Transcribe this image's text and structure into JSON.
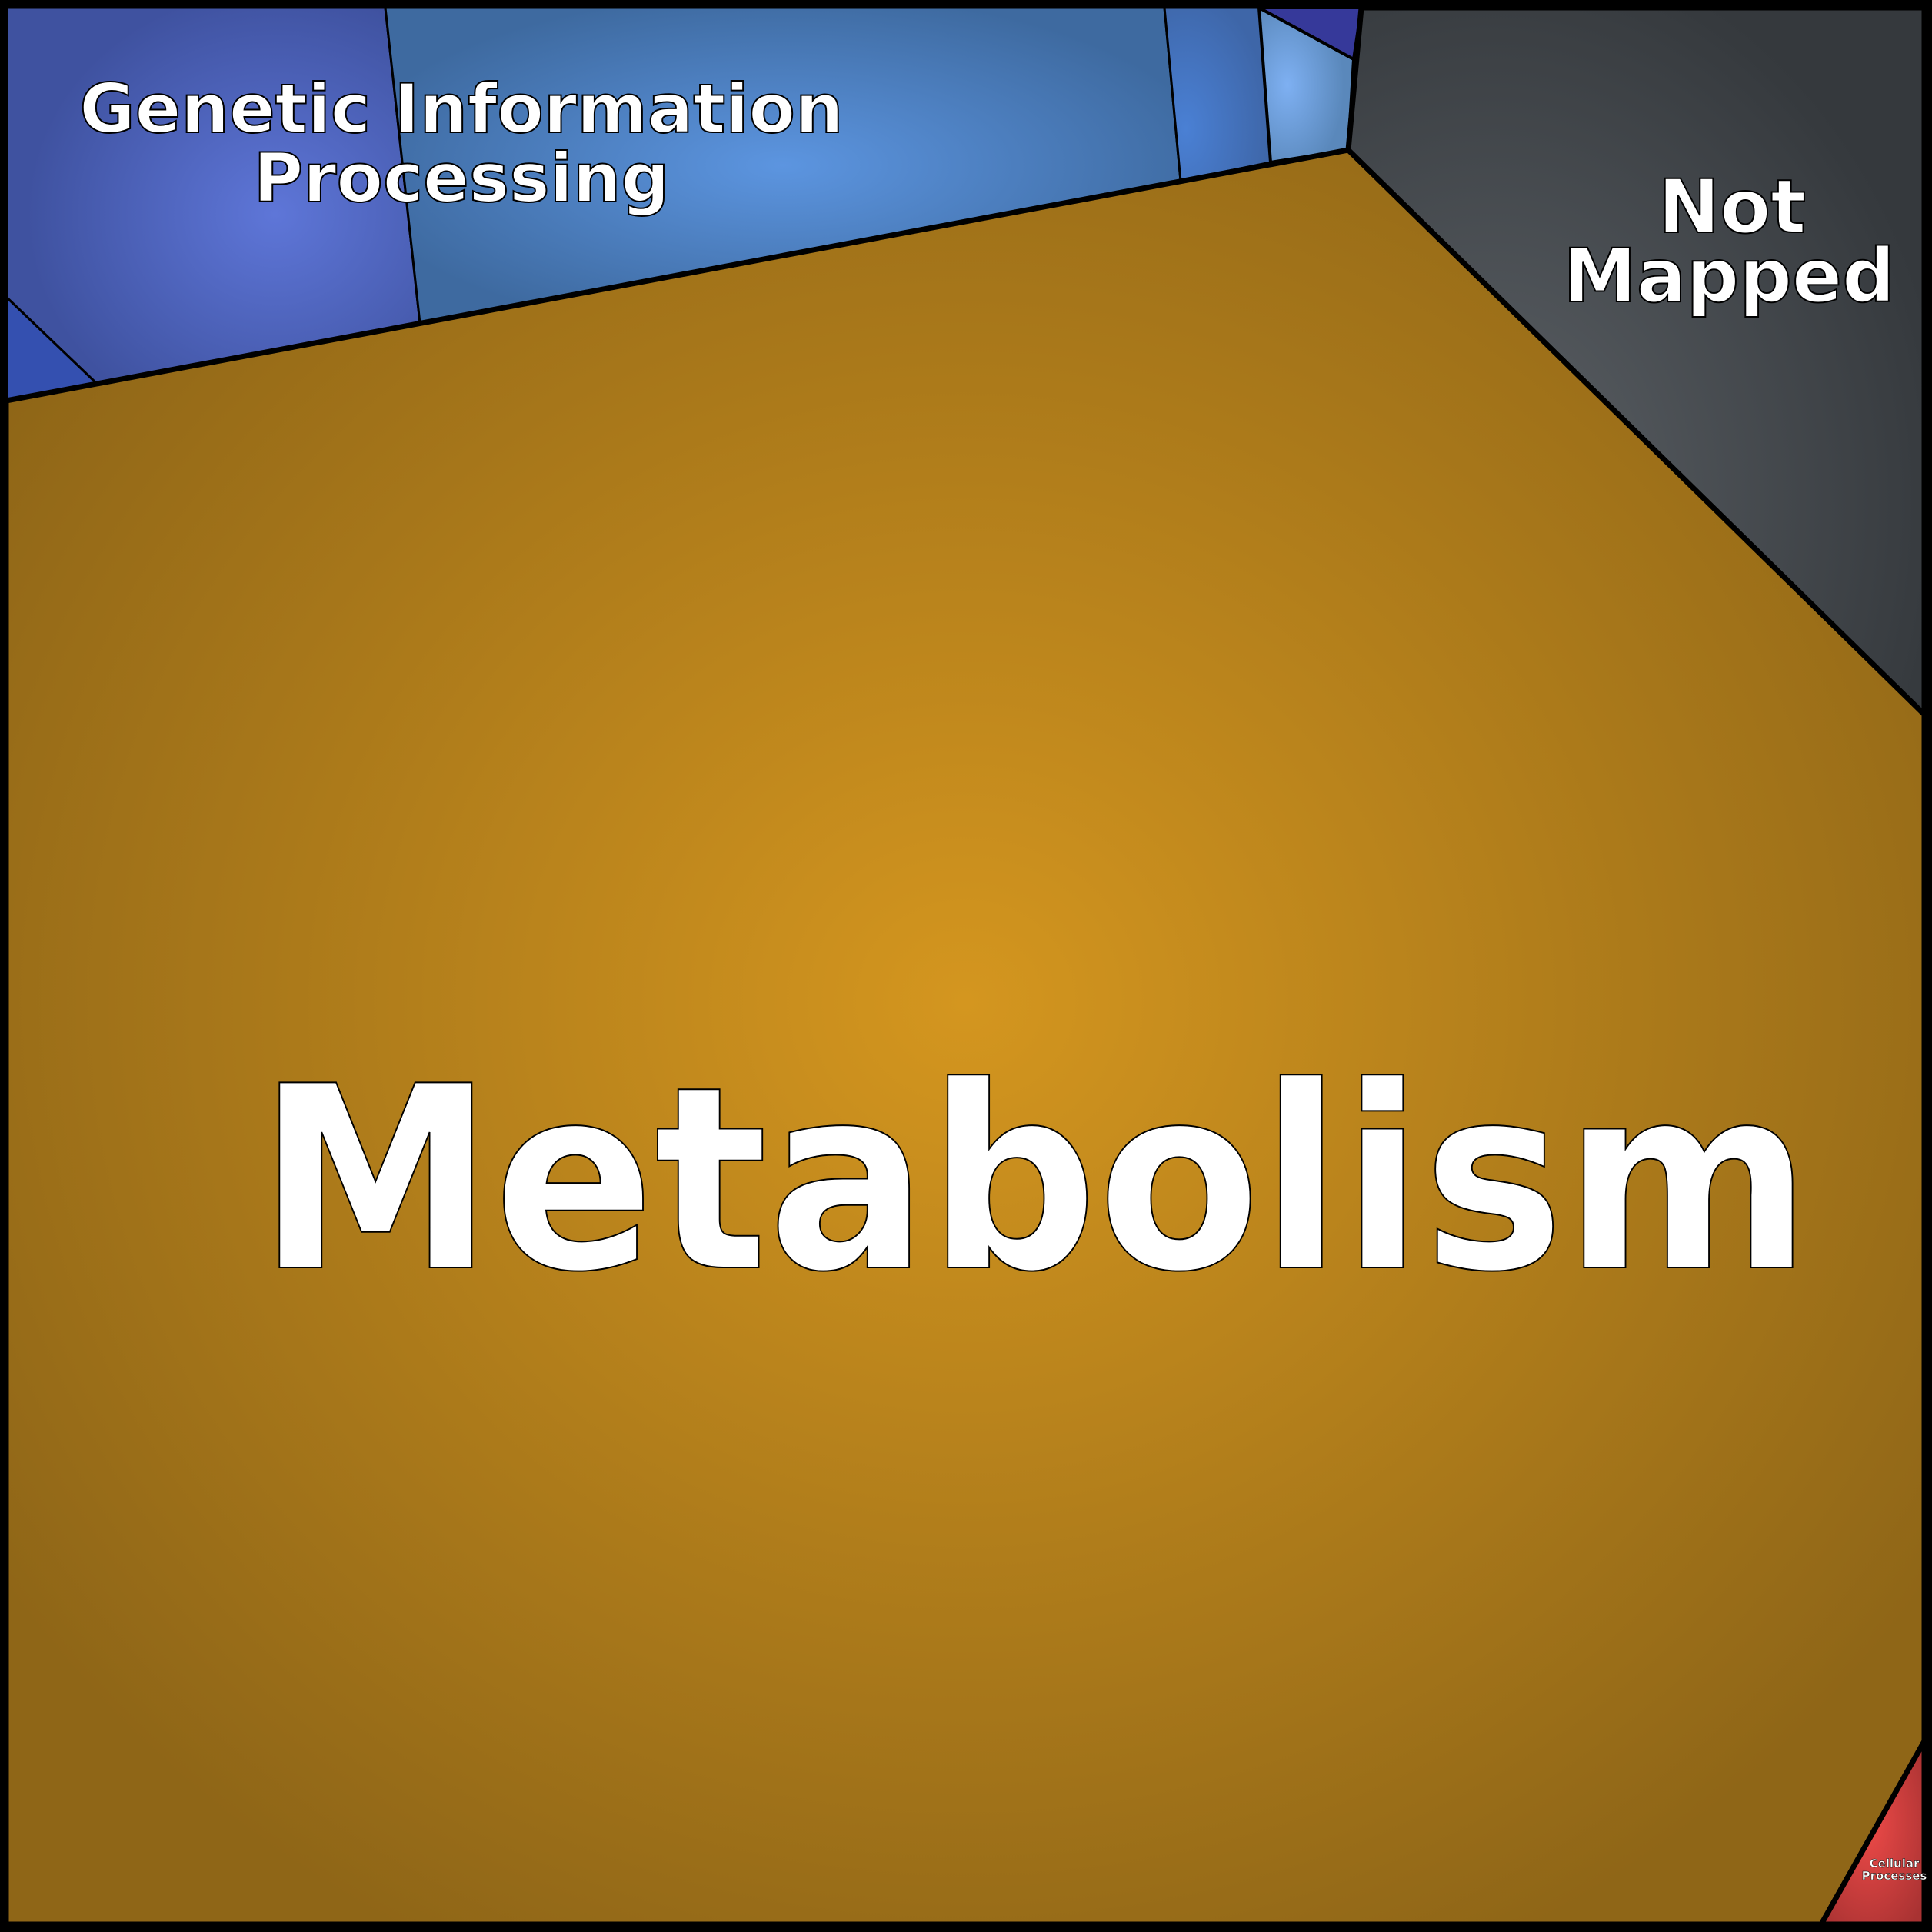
{
  "chart_data": {
    "type": "voronoi-treemap",
    "cells": [
      {
        "label": "Metabolism",
        "color": "#d4961f"
      },
      {
        "label": "Genetic Information Processing",
        "color": "#5c8fe0",
        "subcells": 6
      },
      {
        "label": "Not Mapped",
        "color": "#5a5f64"
      },
      {
        "label": "Cellular Processes",
        "color": "#ee4a48"
      }
    ]
  },
  "labels": {
    "metabolism": "Metabolism",
    "genetic_line1": "Genetic Information",
    "genetic_line2": "Processing",
    "not_mapped_line1": "Not",
    "not_mapped_line2": "Mapped",
    "cellular_line1": "Cellular",
    "cellular_line2": "Processes"
  }
}
